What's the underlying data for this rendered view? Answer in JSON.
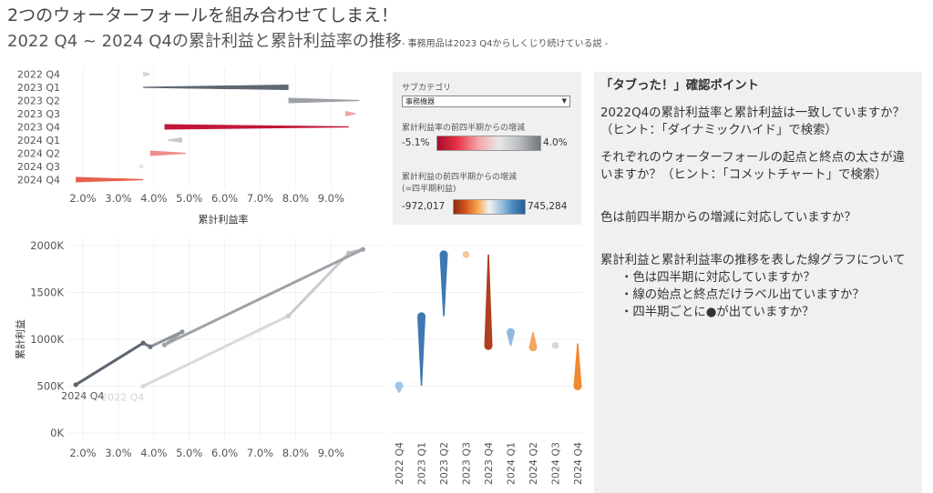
{
  "header": {
    "title": "2つのウォーターフォールを組み合わせてしまえ！",
    "subtitle_main": "2022 Q4 ~ 2024 Q4の累計利益と累計利益率の推移",
    "subtitle_note": "- 事務用品は2023 Q4からしくじり続けている説 -"
  },
  "filters": {
    "subcategory_label": "サブカテゴリ",
    "subcategory_value": "事務機器",
    "ratio_legend_label": "累計利益率の前四半期からの増減",
    "ratio_min": "-5.1%",
    "ratio_max": "4.0%",
    "profit_legend_label": "累計利益の前四半期からの増減",
    "profit_legend_label2": "(=四半期利益)",
    "profit_min": "-972,017",
    "profit_max": "745,284"
  },
  "notes": {
    "heading": "「タブった！」確認ポイント",
    "q1": "2022Q4の累計利益率と累計利益は一致していますか？",
    "q1_hint": "（ヒント：「ダイナミックハイド」で検索）",
    "q2": "それぞれのウォーターフォールの起点と終点の太さが違いますか？（ヒント：「コメットチャート」で検索）",
    "q3": "色は前四半期からの増減に対応していますか？",
    "q4": "累計利益と累計利益率の推移を表した線グラフについて",
    "q4_items": [
      "・色は四半期に対応していますか？",
      "・線の始点と終点だけラベル出ていますか？",
      "・四半期ごとに●が出ていますか？"
    ]
  },
  "chart_data": [
    {
      "type": "bar",
      "orientation": "horizontal-waterfall",
      "categories": [
        "2022 Q4",
        "2023 Q1",
        "2023 Q2",
        "2023 Q3",
        "2023 Q4",
        "2024 Q1",
        "2024 Q2",
        "2024 Q3",
        "2024 Q4"
      ],
      "start_pct": [
        3.9,
        3.7,
        9.8,
        9.7,
        9.5,
        4.4,
        4.9,
        3.7,
        3.7
      ],
      "end_pct": [
        3.7,
        7.8,
        7.8,
        9.4,
        4.3,
        4.8,
        3.9,
        3.6,
        1.8
      ],
      "colors": [
        "#d6d6d6",
        "#5f6771",
        "#9da1a6",
        "#f2a4a4",
        "#c2173a",
        "#c6c8cb",
        "#f08c8c",
        "#e6e6e6",
        "#e8604c"
      ],
      "xlabel": "累計利益率",
      "xticks": [
        "2.0%",
        "3.0%",
        "4.0%",
        "5.0%",
        "6.0%",
        "7.0%",
        "8.0%",
        "9.0%"
      ],
      "xlim": [
        1.5,
        10.0
      ]
    },
    {
      "type": "line",
      "xlabel": "",
      "ylabel": "累計利益",
      "quarters": [
        "2022 Q4",
        "2023 Q1",
        "2023 Q2",
        "2023 Q3",
        "2023 Q4",
        "2024 Q1",
        "2024 Q2",
        "2024 Q3",
        "2024 Q4"
      ],
      "x_pct": [
        3.7,
        7.8,
        9.5,
        9.9,
        4.3,
        4.8,
        3.9,
        3.7,
        1.8
      ],
      "y_profit": [
        500000,
        1250000,
        1920000,
        1960000,
        940000,
        1080000,
        920000,
        960000,
        515000
      ],
      "segment_colors": [
        "#d9d9d9",
        "#c8cacc",
        "#b8bbbe",
        "#9da2a7",
        "#9da2a7",
        "#8e949a",
        "#6e7680",
        "#5c6570"
      ],
      "start_label": "2022 Q4",
      "end_label": "2024 Q4",
      "yticks": [
        "0K",
        "500K",
        "1000K",
        "1500K",
        "2000K"
      ],
      "xticks": [
        "2.0%",
        "3.0%",
        "4.0%",
        "5.0%",
        "6.0%",
        "7.0%",
        "8.0%",
        "9.0%"
      ],
      "xlim": [
        1.5,
        10.0
      ],
      "ylim": [
        0,
        2000000
      ]
    },
    {
      "type": "bar",
      "orientation": "vertical-waterfall",
      "categories": [
        "2022 Q4",
        "2023 Q1",
        "2023 Q2",
        "2023 Q3",
        "2023 Q4",
        "2024 Q1",
        "2024 Q2",
        "2024 Q3",
        "2024 Q4"
      ],
      "start_profit": [
        430000,
        505000,
        1245000,
        1905000,
        1905000,
        930000,
        1075000,
        915000,
        955000
      ],
      "end_profit": [
        505000,
        1245000,
        1905000,
        1905000,
        930000,
        1075000,
        915000,
        955000,
        500000
      ],
      "colors": [
        "#9ec4e6",
        "#3f78b2",
        "#3f78b2",
        "#f5c79f",
        "#b03e20",
        "#8fbadf",
        "#f4a65e",
        "#cfd8df",
        "#ee8a30"
      ],
      "ylim": [
        0,
        2000000
      ]
    }
  ]
}
